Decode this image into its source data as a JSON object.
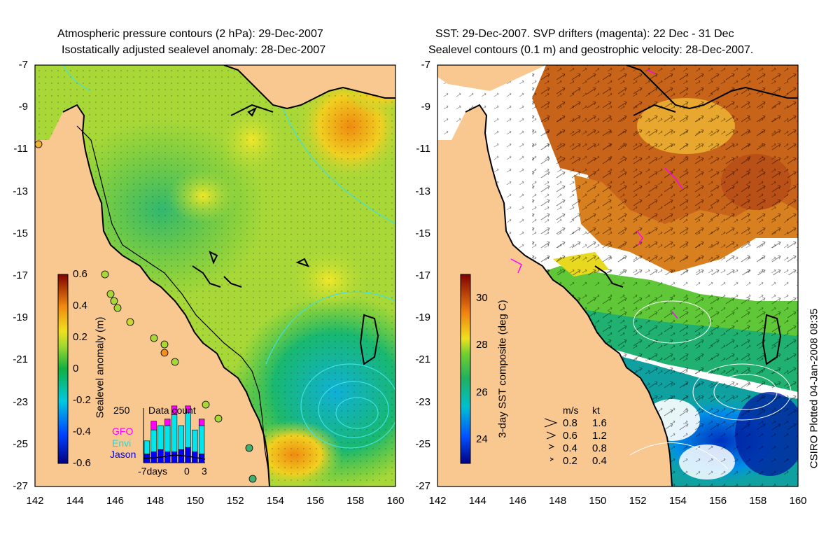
{
  "left_panel": {
    "title_line1": "Atmospheric pressure contours (2 hPa): 29-Dec-2007",
    "title_line2": "Isostatically adjusted sealevel anomaly: 28-Dec-2007",
    "y_ticks": [
      "-7",
      "-9",
      "-11",
      "-13",
      "-15",
      "-17",
      "-19",
      "-21",
      "-23",
      "-25",
      "-27"
    ],
    "x_ticks": [
      "142",
      "144",
      "146",
      "148",
      "150",
      "152",
      "154",
      "156",
      "158",
      "160"
    ],
    "colorbar_label": "Sealevel anomaly (m)",
    "colorbar_ticks": [
      "0.6",
      "0.4",
      "0.2",
      "0",
      "-0.2",
      "-0.4",
      "-0.6"
    ],
    "inset": {
      "title": "Data count",
      "y_tick": "250",
      "x_ticks": [
        "-7days",
        "0",
        "3"
      ],
      "legend": [
        "GFO",
        "Envi",
        "Jason"
      ],
      "legend_colors": [
        "#ff00ff",
        "#00e5ee",
        "#0000ff"
      ],
      "bars": [
        {
          "gfo": 0,
          "envi": 60,
          "jason": 40
        },
        {
          "gfo": 40,
          "envi": 100,
          "jason": 50
        },
        {
          "gfo": 0,
          "envi": 110,
          "jason": 60
        },
        {
          "gfo": 30,
          "envi": 120,
          "jason": 50
        },
        {
          "gfo": 40,
          "envi": 170,
          "jason": 50
        },
        {
          "gfo": 0,
          "envi": 110,
          "jason": 60
        },
        {
          "gfo": 30,
          "envi": 160,
          "jason": 70
        },
        {
          "gfo": 0,
          "envi": 100,
          "jason": 50
        },
        {
          "gfo": 30,
          "envi": 130,
          "jason": 40
        }
      ]
    }
  },
  "right_panel": {
    "title_line1": "SST: 29-Dec-2007. SVP drifters (magenta): 22 Dec - 31 Dec",
    "title_line2": "Sealevel contours (0.1 m) and geostrophic velocity: 28-Dec-2007.",
    "y_ticks": [
      "-7",
      "-9",
      "-11",
      "-13",
      "-15",
      "-17",
      "-19",
      "-21",
      "-23",
      "-25",
      "-27"
    ],
    "x_ticks": [
      "142",
      "144",
      "146",
      "148",
      "150",
      "152",
      "154",
      "156",
      "158",
      "160"
    ],
    "colorbar_label": "3-day SST composite (deg C)",
    "colorbar_ticks": [
      "30",
      "28",
      "26",
      "24"
    ],
    "velocity_legend": {
      "header_ms": "m/s",
      "header_kt": "kt",
      "rows": [
        {
          "ms": "0.8",
          "kt": "1.6"
        },
        {
          "ms": "0.6",
          "kt": "1.2"
        },
        {
          "ms": "0.4",
          "kt": "0.8"
        },
        {
          "ms": "0.2",
          "kt": "0.4"
        }
      ]
    }
  },
  "credit": "CSIRO Plotted 04-Jan-2008 08:35",
  "colors": {
    "land": "#f9c891",
    "sla_ramp": [
      "#000080",
      "#0050ff",
      "#00c8e0",
      "#10b040",
      "#8ad030",
      "#f0e020",
      "#f09010",
      "#c04000",
      "#800000"
    ],
    "sst_ramp": [
      "#000080",
      "#0060ff",
      "#00c0d0",
      "#20b060",
      "#60d030",
      "#e8e020",
      "#f08010",
      "#c03000",
      "#800000"
    ],
    "drifter": "#ff00ff",
    "contour": "#40e0e0"
  }
}
